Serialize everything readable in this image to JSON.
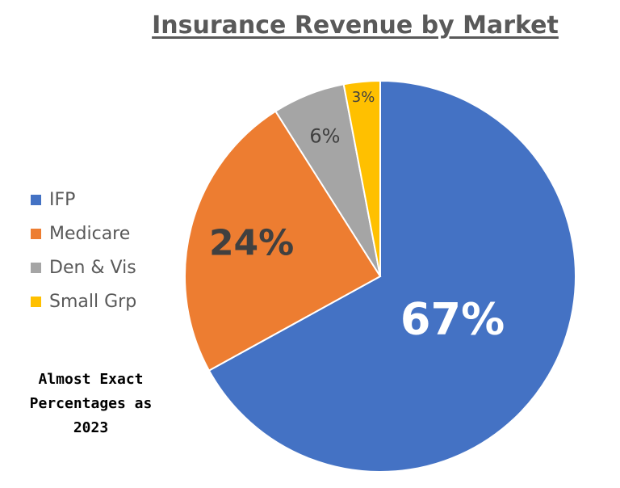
{
  "chart_data": {
    "type": "pie",
    "title": "Insurance Revenue by Market",
    "categories": [
      "IFP",
      "Medicare",
      "Den & Vis",
      "Small Grp"
    ],
    "values": [
      67,
      24,
      6,
      3
    ],
    "labels": [
      "67%",
      "24%",
      "6%",
      "3%"
    ],
    "colors": [
      "#4472C4",
      "#ED7D31",
      "#A5A5A5",
      "#FFC000"
    ],
    "start_angle": "12 o'clock, clockwise",
    "legend_placement": "left",
    "annotation": [
      "Almost Exact",
      "Percentages as",
      "2023"
    ]
  }
}
